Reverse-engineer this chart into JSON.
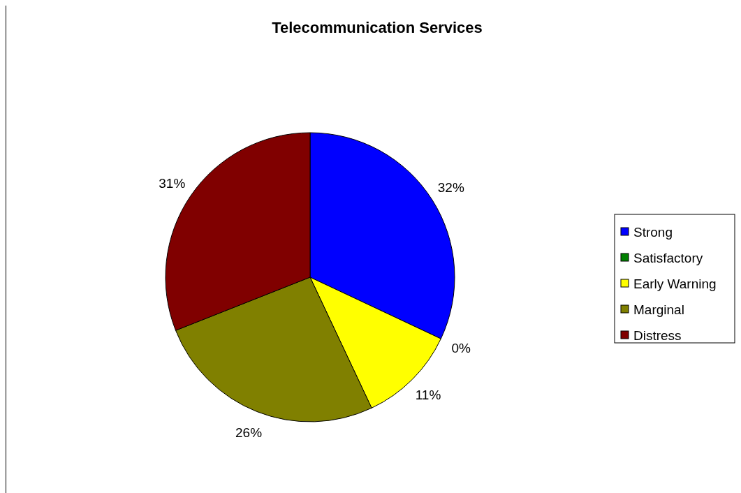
{
  "chart_data": {
    "type": "pie",
    "title": "Telecommunication Services",
    "categories": [
      "Strong",
      "Satisfactory",
      "Early Warning",
      "Marginal",
      "Distress"
    ],
    "values": [
      32,
      0,
      11,
      26,
      31
    ],
    "colors": [
      "#0000ff",
      "#008000",
      "#ffff00",
      "#808000",
      "#800000"
    ],
    "value_labels": [
      "32%",
      "0%",
      "11%",
      "26%",
      "31%"
    ],
    "legend": "right"
  }
}
